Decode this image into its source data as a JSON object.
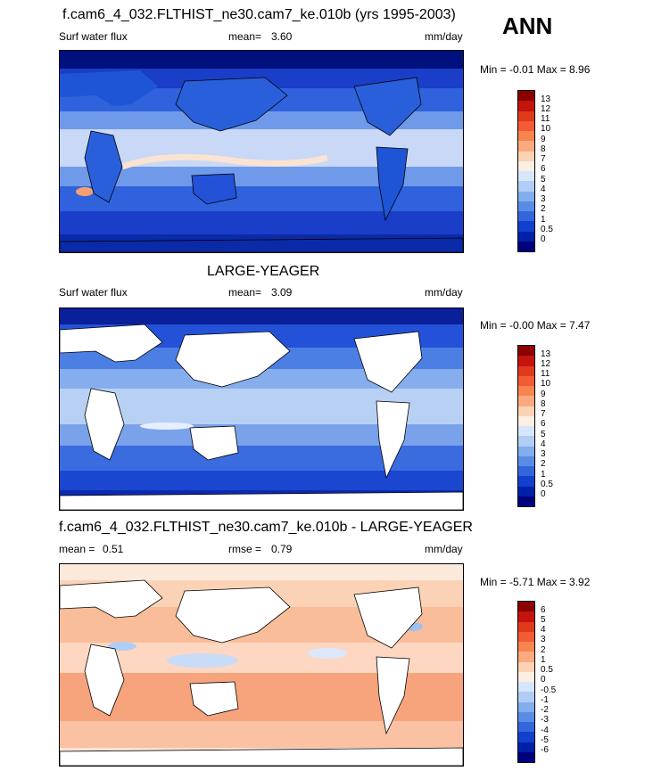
{
  "season": "ANN",
  "panels": [
    {
      "title": "f.cam6_4_032.FLTHIST_ne30.cam7_ke.010b (yrs 1995-2003)",
      "left_label": "Surf water flux",
      "center_label": "mean=",
      "center_value": "3.60",
      "units": "mm/day",
      "minmax": "Min =  -0.01 Max =   8.96",
      "land": "filled",
      "colorbar_labels": [
        "13",
        "12",
        "11",
        "10",
        "9",
        "8",
        "7",
        "6",
        "5",
        "4",
        "3",
        "2",
        "1",
        "0.5",
        "0"
      ],
      "colors": [
        "#8b0000",
        "#c3150c",
        "#e03a1c",
        "#f25b33",
        "#f8844f",
        "#fbaa7f",
        "#fcd3b5",
        "#fbeee2",
        "#d8e6fa",
        "#b0cdf5",
        "#82aeee",
        "#5a8ce6",
        "#3366dd",
        "#1040cc",
        "#0020a8",
        "#00007f"
      ]
    },
    {
      "title": "LARGE-YEAGER",
      "left_label": "Surf water flux",
      "center_label": "mean=",
      "center_value": "3.09",
      "units": "mm/day",
      "minmax": "Min =  -0.00 Max =   7.47",
      "land": "white",
      "colorbar_labels": [
        "13",
        "12",
        "11",
        "10",
        "9",
        "8",
        "7",
        "6",
        "5",
        "4",
        "3",
        "2",
        "1",
        "0.5",
        "0"
      ],
      "colors": [
        "#8b0000",
        "#c3150c",
        "#e03a1c",
        "#f25b33",
        "#f8844f",
        "#fbaa7f",
        "#fcd3b5",
        "#fbeee2",
        "#d8e6fa",
        "#b0cdf5",
        "#82aeee",
        "#5a8ce6",
        "#3366dd",
        "#1040cc",
        "#0020a8",
        "#00007f"
      ]
    },
    {
      "title": "f.cam6_4_032.FLTHIST_ne30.cam7_ke.010b - LARGE-YEAGER",
      "left_label": "mean =",
      "left_value": "0.51",
      "center_label": "rmse =",
      "center_value": "0.79",
      "units": "mm/day",
      "minmax": "Min =  -5.71 Max =   3.92",
      "land": "white",
      "colorbar_labels": [
        "6",
        "5",
        "4",
        "3",
        "2",
        "1",
        "0.5",
        "0",
        "-0.5",
        "-1",
        "-2",
        "-3",
        "-4",
        "-5",
        "-6"
      ],
      "colors": [
        "#8b0000",
        "#c3150c",
        "#e03a1c",
        "#f25b33",
        "#f8844f",
        "#fbaa7f",
        "#fcd3b5",
        "#fbeee2",
        "#d8e6fa",
        "#b0cdf5",
        "#82aeee",
        "#5a8ce6",
        "#3366dd",
        "#1040cc",
        "#0020a8",
        "#00007f"
      ]
    }
  ],
  "chart_data": [
    {
      "type": "heatmap",
      "title": "f.cam6_4_032.FLTHIST_ne30.cam7_ke.010b (yrs 1995-2003)",
      "variable": "Surf water flux",
      "units": "mm/day",
      "mean": 3.6,
      "min": -0.01,
      "max": 8.96,
      "levels": [
        0,
        0.5,
        1,
        2,
        3,
        4,
        5,
        6,
        7,
        8,
        9,
        10,
        11,
        12,
        13
      ]
    },
    {
      "type": "heatmap",
      "title": "LARGE-YEAGER",
      "variable": "Surf water flux",
      "units": "mm/day",
      "mean": 3.09,
      "min": -0.0,
      "max": 7.47,
      "levels": [
        0,
        0.5,
        1,
        2,
        3,
        4,
        5,
        6,
        7,
        8,
        9,
        10,
        11,
        12,
        13
      ]
    },
    {
      "type": "heatmap",
      "title": "f.cam6_4_032.FLTHIST_ne30.cam7_ke.010b - LARGE-YEAGER",
      "units": "mm/day",
      "mean": 0.51,
      "rmse": 0.79,
      "min": -5.71,
      "max": 3.92,
      "levels": [
        -6,
        -5,
        -4,
        -3,
        -2,
        -1,
        -0.5,
        0,
        0.5,
        1,
        2,
        3,
        4,
        5,
        6
      ]
    }
  ]
}
